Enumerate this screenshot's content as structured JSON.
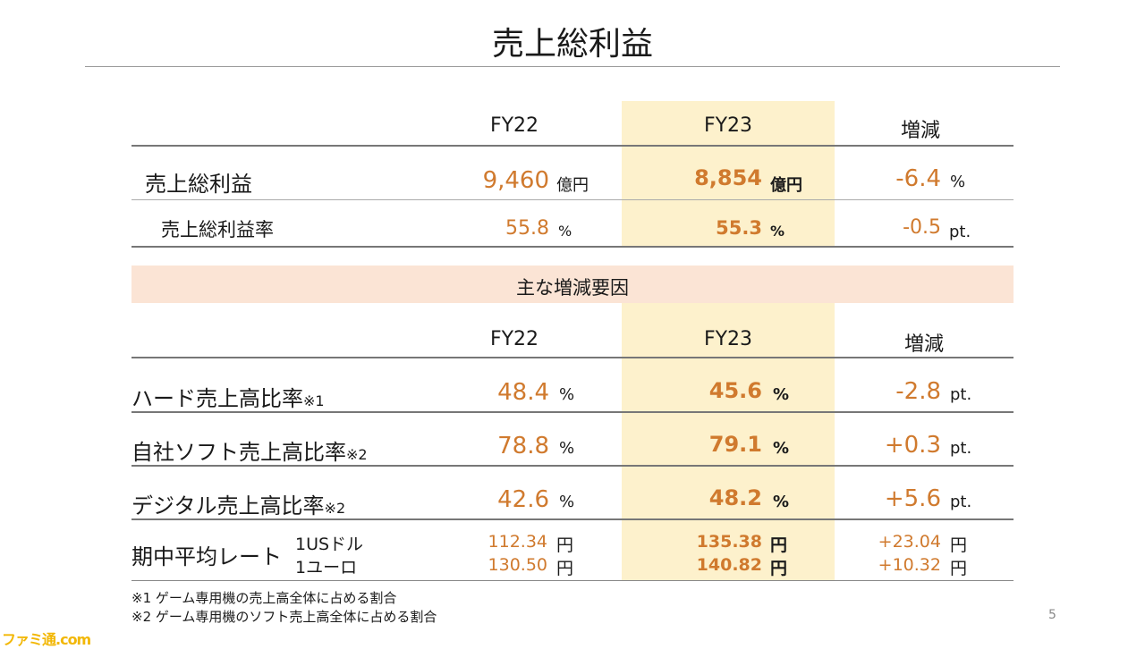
{
  "title": "売上総利益",
  "header": {
    "col1": "FY22",
    "col2": "FY23",
    "col3": "増減"
  },
  "top_rows": [
    {
      "label": "売上総利益",
      "fy22": "9,460",
      "fy22_unit": "億円",
      "fy23": "8,854",
      "fy23_unit": "億円",
      "diff": "-6.4",
      "diff_unit": "%"
    },
    {
      "label": "売上総利益率",
      "fy22": "55.8",
      "fy22_unit": "%",
      "fy23": "55.3",
      "fy23_unit": "%",
      "diff": "-0.5",
      "diff_unit": "pt."
    }
  ],
  "factors_title": "主な増減要因",
  "bottom_rows": [
    {
      "label": "ハード売上高比率",
      "note": "※1",
      "fy22": "48.4",
      "fy22_unit": "%",
      "fy23": "45.6",
      "fy23_unit": "%",
      "diff": "-2.8",
      "diff_unit": "pt."
    },
    {
      "label": "自社ソフト売上高比率",
      "note": "※2",
      "fy22": "78.8",
      "fy22_unit": "%",
      "fy23": "79.1",
      "fy23_unit": "%",
      "diff": "+0.3",
      "diff_unit": "pt."
    },
    {
      "label": "デジタル売上高比率",
      "note": "※2",
      "fy22": "42.6",
      "fy22_unit": "%",
      "fy23": "48.2",
      "fy23_unit": "%",
      "diff": "+5.6",
      "diff_unit": "pt."
    }
  ],
  "fx": {
    "label": "期中平均レート",
    "rows": [
      {
        "currency": "1USドル",
        "fy22": "112.34",
        "fy23": "135.38",
        "diff": "+23.04",
        "unit": "円"
      },
      {
        "currency": "1ユーロ",
        "fy22": "130.50",
        "fy23": "140.82",
        "diff": "+10.32",
        "unit": "円"
      }
    ]
  },
  "footnotes": [
    "※1 ゲーム専用機の売上高全体に占める割合",
    "※2 ゲーム専用機のソフト売上高全体に占める割合"
  ],
  "page_number": "5",
  "watermark": "ファミ通.com",
  "colors": {
    "accent_orange": "#d07a2e",
    "highlight_fill": "#fdf1cc",
    "factor_band": "#fbe4d5"
  }
}
